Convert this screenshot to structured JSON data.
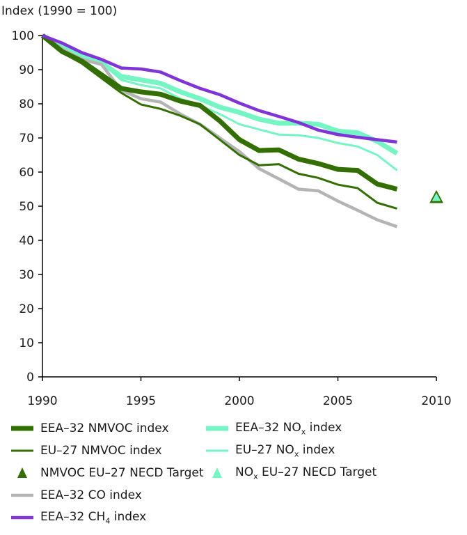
{
  "chart_data": {
    "type": "line",
    "title": "",
    "ylabel": "Index (1990 = 100)",
    "xlabel": "",
    "xlim": [
      1990,
      2010
    ],
    "ylim": [
      0,
      100
    ],
    "x_ticks": [
      1990,
      1995,
      2000,
      2005,
      2010
    ],
    "y_ticks": [
      0,
      10,
      20,
      30,
      40,
      50,
      60,
      70,
      80,
      90,
      100
    ],
    "grid": false,
    "legend_position": "bottom",
    "x": [
      1990,
      1991,
      1992,
      1993,
      1994,
      1995,
      1996,
      1997,
      1998,
      1999,
      2000,
      2001,
      2002,
      2003,
      2004,
      2005,
      2006,
      2007,
      2008
    ],
    "series": [
      {
        "id": "eea-nox",
        "name": "EEA–32 NOx index",
        "label_main": "EEA–32 NO",
        "label_sub": "x",
        "label_tail": " index",
        "color": "#74f5c3",
        "style": "thick",
        "values": [
          100,
          97,
          94,
          92,
          88,
          87,
          86,
          83.5,
          81.5,
          79,
          77.5,
          75.5,
          74.3,
          74.3,
          74,
          72,
          71.5,
          69,
          65.5
        ]
      },
      {
        "id": "eu-nox",
        "name": "EU–27 NOx index",
        "label_main": "EU–27 NO",
        "label_sub": "x",
        "label_tail": " index",
        "color": "#74f5c3",
        "style": "thin",
        "values": [
          100,
          97,
          93.5,
          92,
          87,
          85.5,
          84.5,
          81.5,
          79.5,
          77,
          74,
          72.5,
          71,
          70.8,
          70,
          68.5,
          67.5,
          65,
          60.5
        ]
      },
      {
        "id": "eea-co",
        "name": "EEA–32 CO index",
        "label_main": "EEA–32 CO index",
        "label_sub": "",
        "label_tail": "",
        "color": "#b4b4b4",
        "style": "medium",
        "values": [
          100,
          96,
          93,
          91.5,
          84,
          81.5,
          80.5,
          77,
          74,
          70,
          66,
          61,
          58,
          55,
          54.5,
          51.5,
          48.8,
          46,
          44
        ]
      },
      {
        "id": "eu-nmvoc",
        "name": "EU–27 NMVOC index",
        "label_main": "EU–27 NMVOC index",
        "label_sub": "",
        "label_tail": "",
        "color": "#336f00",
        "style": "thin",
        "values": [
          100,
          95,
          91.8,
          87.5,
          83.2,
          79.8,
          78.5,
          76.5,
          74,
          69.5,
          65,
          62,
          62.3,
          59.5,
          58.3,
          56.3,
          55.3,
          51,
          49.3
        ]
      },
      {
        "id": "eea-nmvoc",
        "name": "EEA–32 NMVOC index",
        "label_main": "EEA–32 NMVOC index",
        "label_sub": "",
        "label_tail": "",
        "color": "#336f00",
        "style": "thick",
        "values": [
          100,
          95.3,
          92.5,
          88.5,
          84.5,
          83.5,
          82.8,
          80.8,
          79.5,
          75,
          69.5,
          66.3,
          66.5,
          63.8,
          62.5,
          60.8,
          60.5,
          56.5,
          55
        ]
      },
      {
        "id": "eea-ch4",
        "name": "EEA–32 CH4 index",
        "label_main": "EEA–32 CH",
        "label_sub": "4",
        "label_tail": " index",
        "color": "#8033d6",
        "style": "medium",
        "values": [
          100,
          97.8,
          95,
          93,
          90.5,
          90.2,
          89.3,
          86.8,
          84.5,
          82.7,
          80.2,
          78,
          76.3,
          74.5,
          72.3,
          71,
          70.2,
          69.5,
          68.8
        ]
      }
    ],
    "targets": [
      {
        "id": "nmvoc-target",
        "name": "NMVOC EU–27 NECD Target",
        "label_main": "NMVOC EU–27 NECD Target",
        "label_sub": "",
        "label_tail": "",
        "x": 2010,
        "y": 52.5,
        "color": "#336f00"
      },
      {
        "id": "nox-target",
        "name": "NOx EU–27 NECD Target",
        "label_main": "NO",
        "label_sub": "x",
        "label_tail": " EU–27 NECD Target",
        "x": 2010,
        "y": 52.5,
        "color": "#74f5c3"
      }
    ],
    "legend": [
      {
        "ref": "eea-nmvoc",
        "column": 0,
        "row": 0
      },
      {
        "ref": "eu-nmvoc",
        "column": 0,
        "row": 1
      },
      {
        "ref": "nmvoc-target",
        "column": 0,
        "row": 2
      },
      {
        "ref": "eea-co",
        "column": 0,
        "row": 3
      },
      {
        "ref": "eea-ch4",
        "column": 0,
        "row": 4
      },
      {
        "ref": "eea-nox",
        "column": 1,
        "row": 0
      },
      {
        "ref": "eu-nox",
        "column": 1,
        "row": 1
      },
      {
        "ref": "nox-target",
        "column": 1,
        "row": 2
      }
    ]
  }
}
